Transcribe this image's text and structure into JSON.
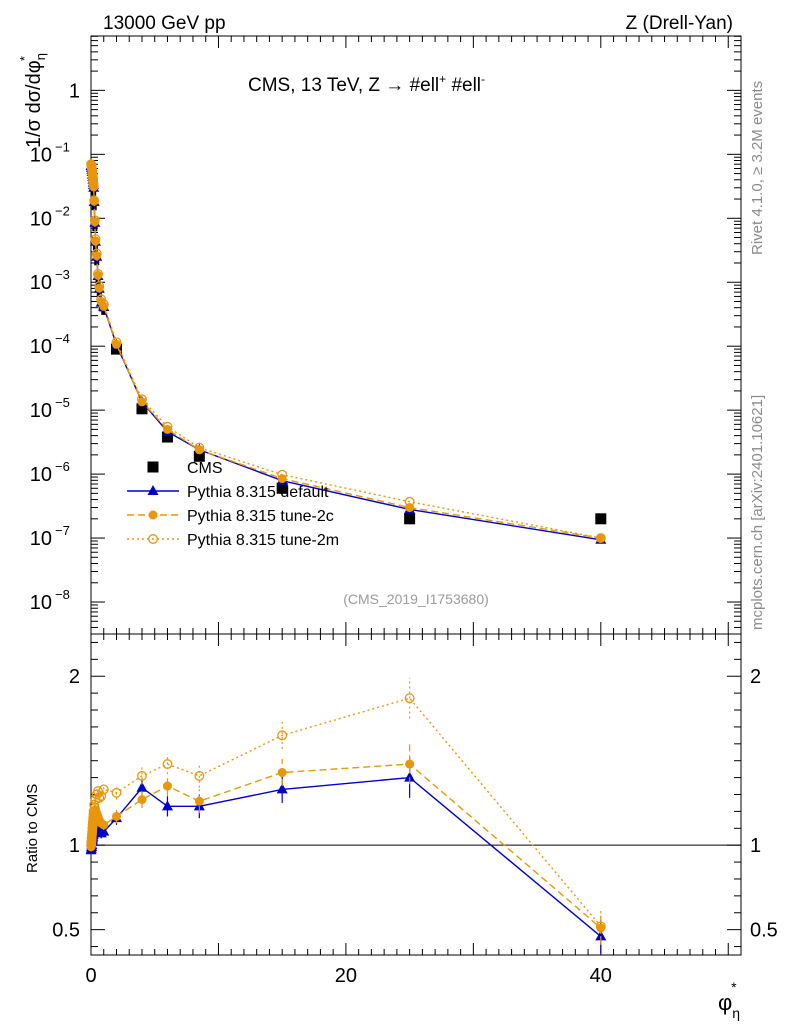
{
  "header": {
    "energy_label": "13000 GeV pp",
    "process_label": "Z (Drell-Yan)"
  },
  "side": {
    "rivet_label": "Rivet 4.1.0, ≥ 3.2M events",
    "source_label": "mcplots.cern.ch [arXiv:2401.10621]"
  },
  "chart_data": {
    "type": "line",
    "title": "CMS, 13 TeV, Z →  #ell⁺ #ell⁻",
    "title_parts": {
      "main": "CMS, 13 TeV, Z →  #ell",
      "sup1": "+",
      "mid": " #ell",
      "sup2": "-"
    },
    "analysis_label": "(CMS_2019_I1753680)",
    "ylabel": "1/σ dσ/dφ*η",
    "ylabel_parts": {
      "main": "1/σ dσ/dφ",
      "sup": "*",
      "sub": "η"
    },
    "xlabel": "φ*η",
    "xlabel_parts": {
      "main": "φ",
      "sup": "*",
      "sub": "η"
    },
    "ratio_ylabel": "Ratio to CMS",
    "xlim": [
      0,
      51
    ],
    "ylim_log": [
      -8.5,
      0.85
    ],
    "ratio_ylim": [
      0.35,
      2.25
    ],
    "x_ticks": [
      0,
      20,
      40
    ],
    "y_ticks": [
      {
        "exp": 0,
        "label": "1"
      },
      {
        "exp": -1,
        "base": "10",
        "sup": "−1"
      },
      {
        "exp": -2,
        "base": "10",
        "sup": "−2"
      },
      {
        "exp": -3,
        "base": "10",
        "sup": "−3"
      },
      {
        "exp": -4,
        "base": "10",
        "sup": "−4"
      },
      {
        "exp": -5,
        "base": "10",
        "sup": "−5"
      },
      {
        "exp": -6,
        "base": "10",
        "sup": "−6"
      },
      {
        "exp": -7,
        "base": "10",
        "sup": "−7"
      },
      {
        "exp": -8,
        "base": "10",
        "sup": "−8"
      }
    ],
    "ratio_ticks": [
      {
        "v": 0.5,
        "label": "0.5"
      },
      {
        "v": 1,
        "label": "1"
      },
      {
        "v": 2,
        "label": "2"
      }
    ],
    "x": [
      0.01,
      0.03,
      0.05,
      0.07,
      0.09,
      0.11,
      0.13,
      0.15,
      0.17,
      0.19,
      0.21,
      0.25,
      0.3,
      0.35,
      0.45,
      0.55,
      0.65,
      0.8,
      1.0,
      2.0,
      4.0,
      6.0,
      8.5,
      15,
      25,
      40
    ],
    "series": [
      {
        "name": "CMS",
        "kind": "data",
        "color": "#000000",
        "values": [
          0.068,
          0.066,
          0.062,
          0.057,
          0.052,
          0.047,
          0.042,
          0.038,
          0.034,
          0.03,
          0.027,
          0.016,
          0.0075,
          0.0037,
          0.0022,
          0.0011,
          0.0007,
          0.00042,
          0.00037,
          9e-05,
          1.05e-05,
          3.8e-06,
          1.9e-06,
          6e-07,
          2e-07,
          2e-07
        ]
      },
      {
        "name": "Pythia 8.315 default",
        "kind": "solid",
        "color": "#0000cc",
        "values": [
          0.066,
          0.065,
          0.061,
          0.057,
          0.053,
          0.048,
          0.044,
          0.04,
          0.036,
          0.033,
          0.03,
          0.018,
          0.0085,
          0.0043,
          0.0025,
          0.00125,
          0.00079,
          0.00048,
          0.00041,
          0.000105,
          1.35e-05,
          4.6e-06,
          2.4e-06,
          7.9e-07,
          2.8e-07,
          9.4e-08
        ],
        "ratio": [
          0.97,
          0.98,
          0.99,
          1.0,
          1.02,
          1.03,
          1.04,
          1.05,
          1.06,
          1.07,
          1.08,
          1.1,
          1.12,
          1.15,
          1.12,
          1.13,
          1.09,
          1.07,
          1.08,
          1.16,
          1.34,
          1.23,
          1.23,
          1.33,
          1.4,
          0.46
        ]
      },
      {
        "name": "Pythia 8.315 tune-2c",
        "kind": "dashed",
        "color": "#e8960a",
        "values": [
          0.068,
          0.066,
          0.062,
          0.058,
          0.054,
          0.049,
          0.045,
          0.041,
          0.037,
          0.034,
          0.031,
          0.0185,
          0.0088,
          0.0044,
          0.0026,
          0.00128,
          0.00081,
          0.0005,
          0.00042,
          0.000107,
          1.35e-05,
          5e-06,
          2.4e-06,
          8.5e-07,
          3e-07,
          1e-07
        ],
        "ratio": [
          0.99,
          1.0,
          1.01,
          1.03,
          1.05,
          1.07,
          1.09,
          1.11,
          1.13,
          1.15,
          1.17,
          1.19,
          1.17,
          1.21,
          1.19,
          1.17,
          1.15,
          1.13,
          1.12,
          1.17,
          1.27,
          1.35,
          1.26,
          1.43,
          1.48,
          0.51
        ]
      },
      {
        "name": "Pythia 8.315 tune-2m",
        "kind": "dotted",
        "color": "#e8960a",
        "values": [
          0.07,
          0.068,
          0.064,
          0.06,
          0.056,
          0.051,
          0.047,
          0.043,
          0.039,
          0.035,
          0.032,
          0.019,
          0.0093,
          0.0047,
          0.0028,
          0.00135,
          0.00087,
          0.00054,
          0.00045,
          0.000115,
          1.48e-05,
          5.5e-06,
          2.6e-06,
          9.8e-07,
          3.7e-07,
          1e-07
        ],
        "ratio": [
          1.0,
          1.02,
          1.04,
          1.06,
          1.08,
          1.1,
          1.12,
          1.14,
          1.16,
          1.18,
          1.2,
          1.24,
          1.22,
          1.27,
          1.3,
          1.32,
          1.28,
          1.29,
          1.33,
          1.31,
          1.41,
          1.48,
          1.41,
          1.65,
          1.87,
          0.52
        ]
      }
    ],
    "ratio_errors": [
      0,
      0,
      0,
      0,
      0,
      0,
      0,
      0,
      0,
      0,
      0,
      0.02,
      0.02,
      0.02,
      0.03,
      0.03,
      0.03,
      0.03,
      0.03,
      0.04,
      0.05,
      0.06,
      0.07,
      0.08,
      0.12,
      0.1
    ],
    "legend_position": "center-left"
  }
}
